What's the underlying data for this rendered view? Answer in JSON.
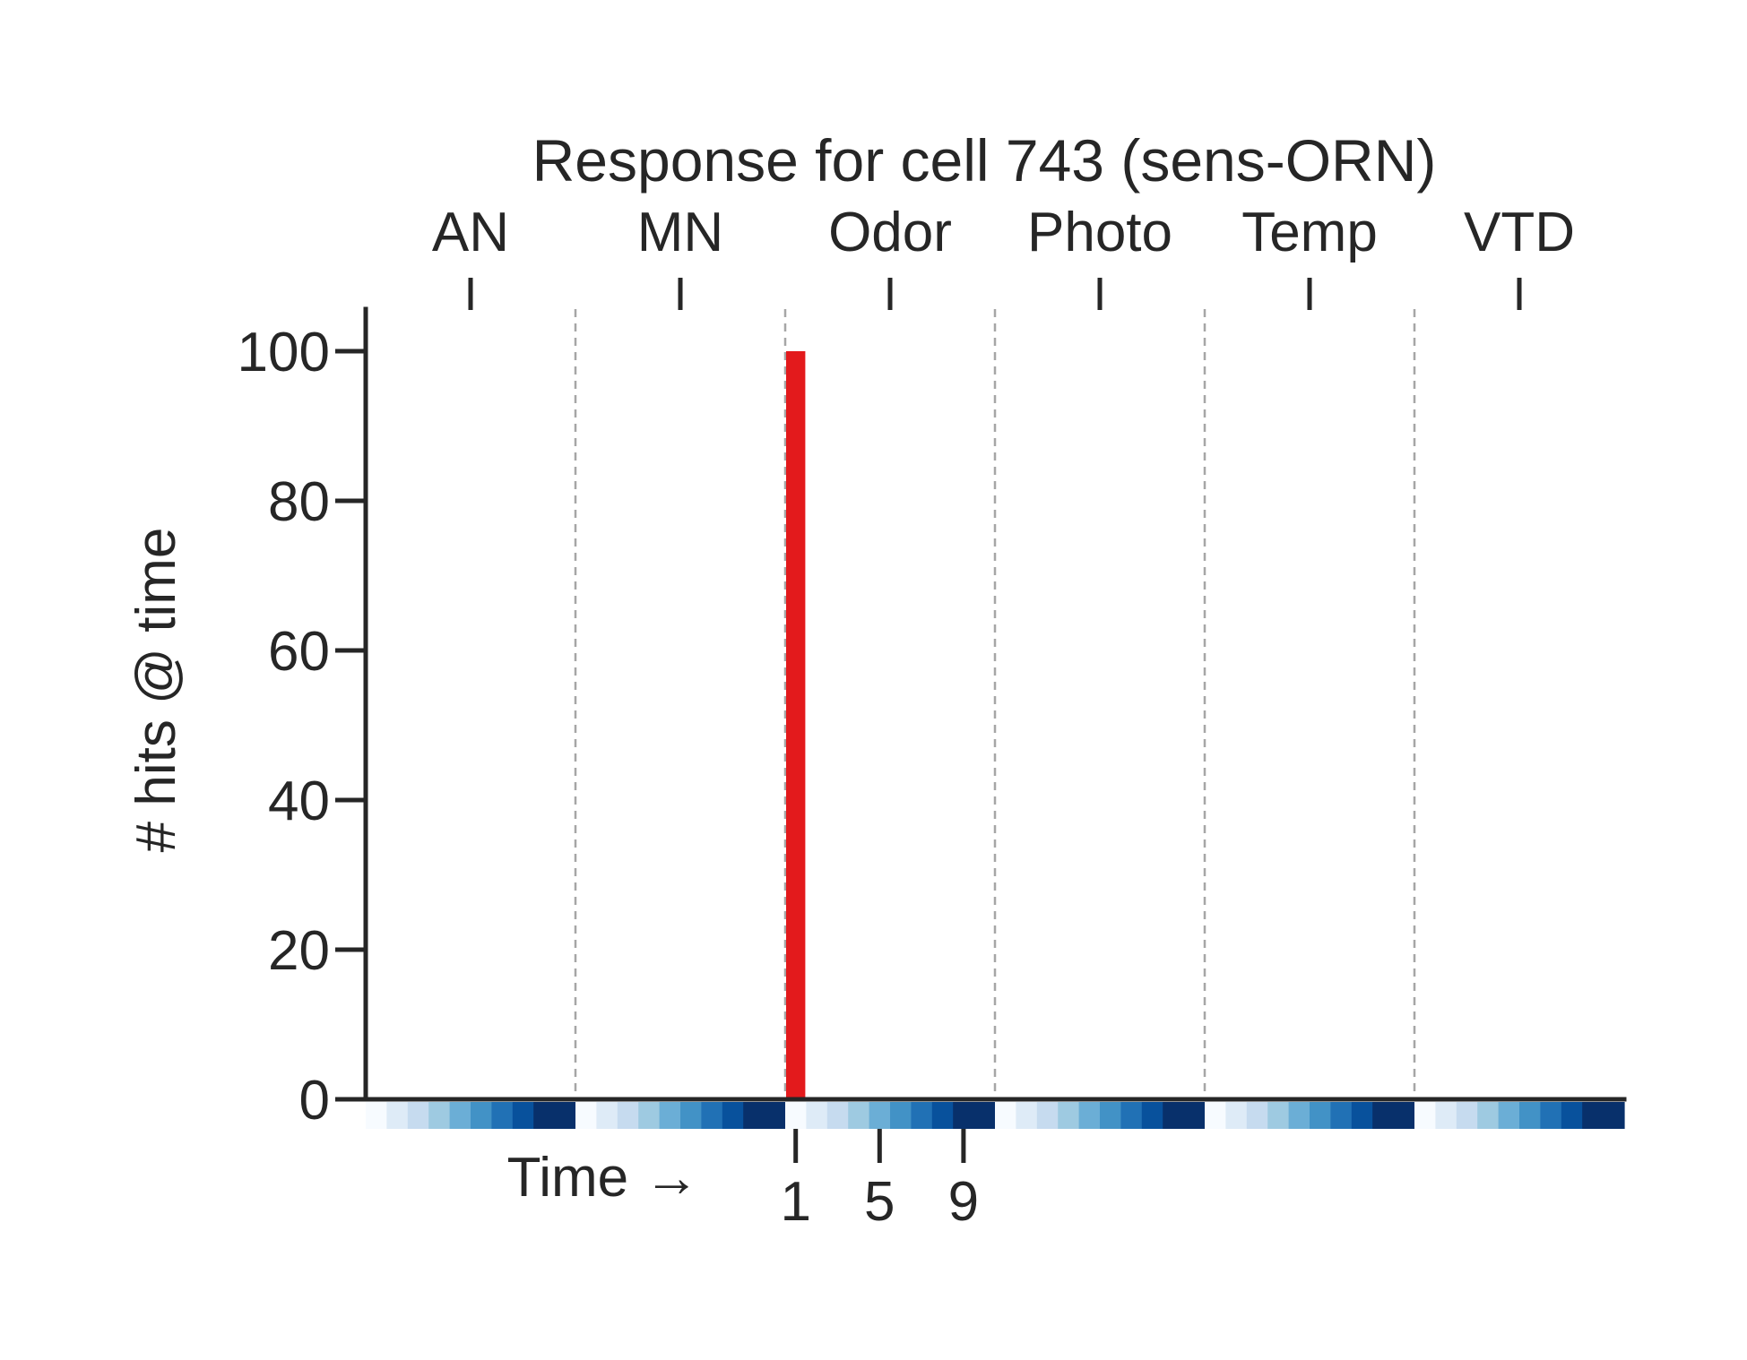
{
  "chart_data": {
    "type": "bar",
    "title": "Response for cell 743 (sens-ORN)",
    "ylabel": "# hits @ time",
    "xlabel": "Time →",
    "ylim": [
      0,
      105
    ],
    "yticks": [
      0,
      20,
      40,
      60,
      80,
      100
    ],
    "groups": [
      "AN",
      "MN",
      "Odor",
      "Photo",
      "Temp",
      "VTD"
    ],
    "bins_per_group": 10,
    "time_ticks": [
      1,
      5,
      9
    ],
    "time_ticks_group": "Odor",
    "colormap": [
      "#f7fbff",
      "#deebf7",
      "#c6dbef",
      "#9ecae1",
      "#6baed6",
      "#4292c6",
      "#2171b5",
      "#08519c",
      "#08306b",
      "#08306b"
    ],
    "bar_color": "#e31a1c",
    "series": [
      {
        "values": [
          0,
          0,
          0,
          0,
          0,
          0,
          0,
          0,
          0,
          0,
          0,
          0,
          0,
          0,
          0,
          0,
          0,
          0,
          0,
          0,
          100,
          0,
          0,
          0,
          0,
          0,
          0,
          0,
          0,
          0,
          0,
          0,
          0,
          0,
          0,
          0,
          0,
          0,
          0,
          0,
          0,
          0,
          0,
          0,
          0,
          0,
          0,
          0,
          0,
          0,
          0,
          0,
          0,
          0,
          0,
          0,
          0,
          0,
          0,
          0
        ]
      }
    ],
    "grid": false,
    "group_dividers": "dashed"
  }
}
